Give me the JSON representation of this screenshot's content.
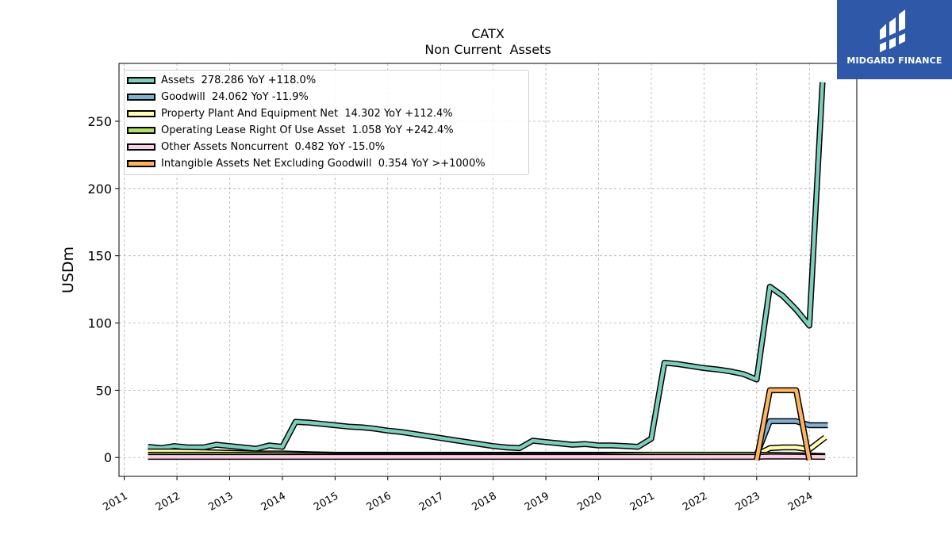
{
  "chart_data": {
    "type": "line",
    "title": "CATX",
    "subtitle": "Non Current  Assets",
    "ylabel": "USDm",
    "xlabel": "",
    "ylim": [
      -14,
      293
    ],
    "xlim": [
      2010.9,
      2024.9
    ],
    "yticks": [
      0,
      50,
      100,
      150,
      200,
      250
    ],
    "xticks": [
      "2011",
      "2012",
      "2013",
      "2014",
      "2015",
      "2016",
      "2017",
      "2018",
      "2019",
      "2020",
      "2021",
      "2022",
      "2023",
      "2024"
    ],
    "grid": true,
    "legend_position": "upper-left",
    "series": [
      {
        "name": "Assets",
        "legend_label": "Assets  278.286 YoY +118.0%",
        "color": "#7fcdbb",
        "points": [
          [
            2011.45,
            8.0
          ],
          [
            2011.7,
            7.0
          ],
          [
            2011.95,
            8.5
          ],
          [
            2012.2,
            7.5
          ],
          [
            2012.5,
            7.5
          ],
          [
            2012.75,
            9.5
          ],
          [
            2013.0,
            8.5
          ],
          [
            2013.25,
            7.5
          ],
          [
            2013.5,
            6.5
          ],
          [
            2013.75,
            9.0
          ],
          [
            2014.0,
            8.0
          ],
          [
            2014.25,
            26.5
          ],
          [
            2014.5,
            26.0
          ],
          [
            2014.75,
            25.0
          ],
          [
            2015.0,
            24.0
          ],
          [
            2015.25,
            23.0
          ],
          [
            2015.5,
            22.5
          ],
          [
            2015.75,
            21.5
          ],
          [
            2016.0,
            20.0
          ],
          [
            2016.25,
            19.0
          ],
          [
            2016.5,
            17.5
          ],
          [
            2016.75,
            16.0
          ],
          [
            2017.0,
            14.5
          ],
          [
            2017.25,
            13.0
          ],
          [
            2017.5,
            11.5
          ],
          [
            2017.75,
            10.0
          ],
          [
            2018.0,
            8.5
          ],
          [
            2018.25,
            7.5
          ],
          [
            2018.5,
            7.0
          ],
          [
            2018.75,
            12.5
          ],
          [
            2019.0,
            11.5
          ],
          [
            2019.25,
            10.5
          ],
          [
            2019.5,
            9.5
          ],
          [
            2019.75,
            10.0
          ],
          [
            2020.0,
            9.0
          ],
          [
            2020.25,
            9.0
          ],
          [
            2020.5,
            8.5
          ],
          [
            2020.75,
            8.0
          ],
          [
            2021.0,
            14.0
          ],
          [
            2021.25,
            70.5
          ],
          [
            2021.5,
            69.5
          ],
          [
            2021.75,
            68.0
          ],
          [
            2022.0,
            66.5
          ],
          [
            2022.25,
            65.5
          ],
          [
            2022.5,
            64.0
          ],
          [
            2022.75,
            62.0
          ],
          [
            2023.0,
            58.0
          ],
          [
            2023.25,
            127.0
          ],
          [
            2023.5,
            120.0
          ],
          [
            2023.75,
            110.0
          ],
          [
            2024.0,
            98.0
          ],
          [
            2024.25,
            279.0
          ]
        ]
      },
      {
        "name": "Goodwill",
        "legend_label": "Goodwill  24.062 YoY -11.9%",
        "color": "#80b1d3",
        "points": [
          [
            2023.0,
            2.0
          ],
          [
            2023.25,
            27.0
          ],
          [
            2023.5,
            27.0
          ],
          [
            2023.75,
            27.0
          ],
          [
            2024.0,
            24.0
          ],
          [
            2024.35,
            24.0
          ]
        ]
      },
      {
        "name": "Property Plant And Equipment Net",
        "legend_label": "Property Plant And Equipment Net  14.302 YoY +112.4%",
        "color": "#ffffb3",
        "points": [
          [
            2011.45,
            4.5
          ],
          [
            2011.95,
            4.5
          ],
          [
            2012.5,
            4.0
          ],
          [
            2013.0,
            3.5
          ],
          [
            2013.5,
            3.0
          ],
          [
            2014.0,
            3.0
          ],
          [
            2014.5,
            2.5
          ],
          [
            2015.0,
            2.0
          ],
          [
            2016.0,
            2.0
          ],
          [
            2017.0,
            2.0
          ],
          [
            2018.0,
            2.0
          ],
          [
            2019.0,
            2.0
          ],
          [
            2020.0,
            2.0
          ],
          [
            2021.0,
            2.0
          ],
          [
            2022.0,
            2.0
          ],
          [
            2023.0,
            2.0
          ],
          [
            2023.25,
            7.0
          ],
          [
            2023.5,
            7.5
          ],
          [
            2023.75,
            7.5
          ],
          [
            2024.0,
            6.0
          ],
          [
            2024.3,
            15.0
          ]
        ]
      },
      {
        "name": "Operating Lease Right Of Use Asset",
        "legend_label": "Operating Lease Right Of Use Asset  1.058 YoY +242.4%",
        "color": "#b3de69",
        "points": [
          [
            2011.45,
            2.0
          ],
          [
            2013.0,
            2.0
          ],
          [
            2015.0,
            1.5
          ],
          [
            2018.0,
            1.5
          ],
          [
            2020.0,
            1.5
          ],
          [
            2021.0,
            2.0
          ],
          [
            2022.0,
            2.0
          ],
          [
            2022.9,
            2.0
          ],
          [
            2023.25,
            2.0
          ],
          [
            2024.0,
            1.5
          ],
          [
            2024.3,
            1.1
          ]
        ]
      },
      {
        "name": "Other Assets Noncurrent",
        "legend_label": "Other Assets Noncurrent  0.482 YoY -15.0%",
        "color": "#fccde5",
        "points": [
          [
            2011.45,
            0.5
          ],
          [
            2014.0,
            0.5
          ],
          [
            2017.0,
            0.5
          ],
          [
            2020.0,
            0.5
          ],
          [
            2023.0,
            0.5
          ],
          [
            2023.25,
            0.8
          ],
          [
            2024.0,
            0.6
          ],
          [
            2024.3,
            0.5
          ]
        ]
      },
      {
        "name": "Intangible Assets Net Excluding Goodwill",
        "legend_label": "Intangible Assets Net Excluding Goodwill  0.354 YoY >+1000%",
        "color": "#fdb462",
        "points": [
          [
            2023.0,
            -2.0
          ],
          [
            2023.25,
            50.0
          ],
          [
            2023.5,
            50.0
          ],
          [
            2023.75,
            50.0
          ],
          [
            2024.0,
            -2.0
          ]
        ]
      }
    ]
  },
  "brand": {
    "name": "MIDGARD FINANCE",
    "logo_icon": "midgard-logo-icon",
    "color": "#2f58a8"
  }
}
